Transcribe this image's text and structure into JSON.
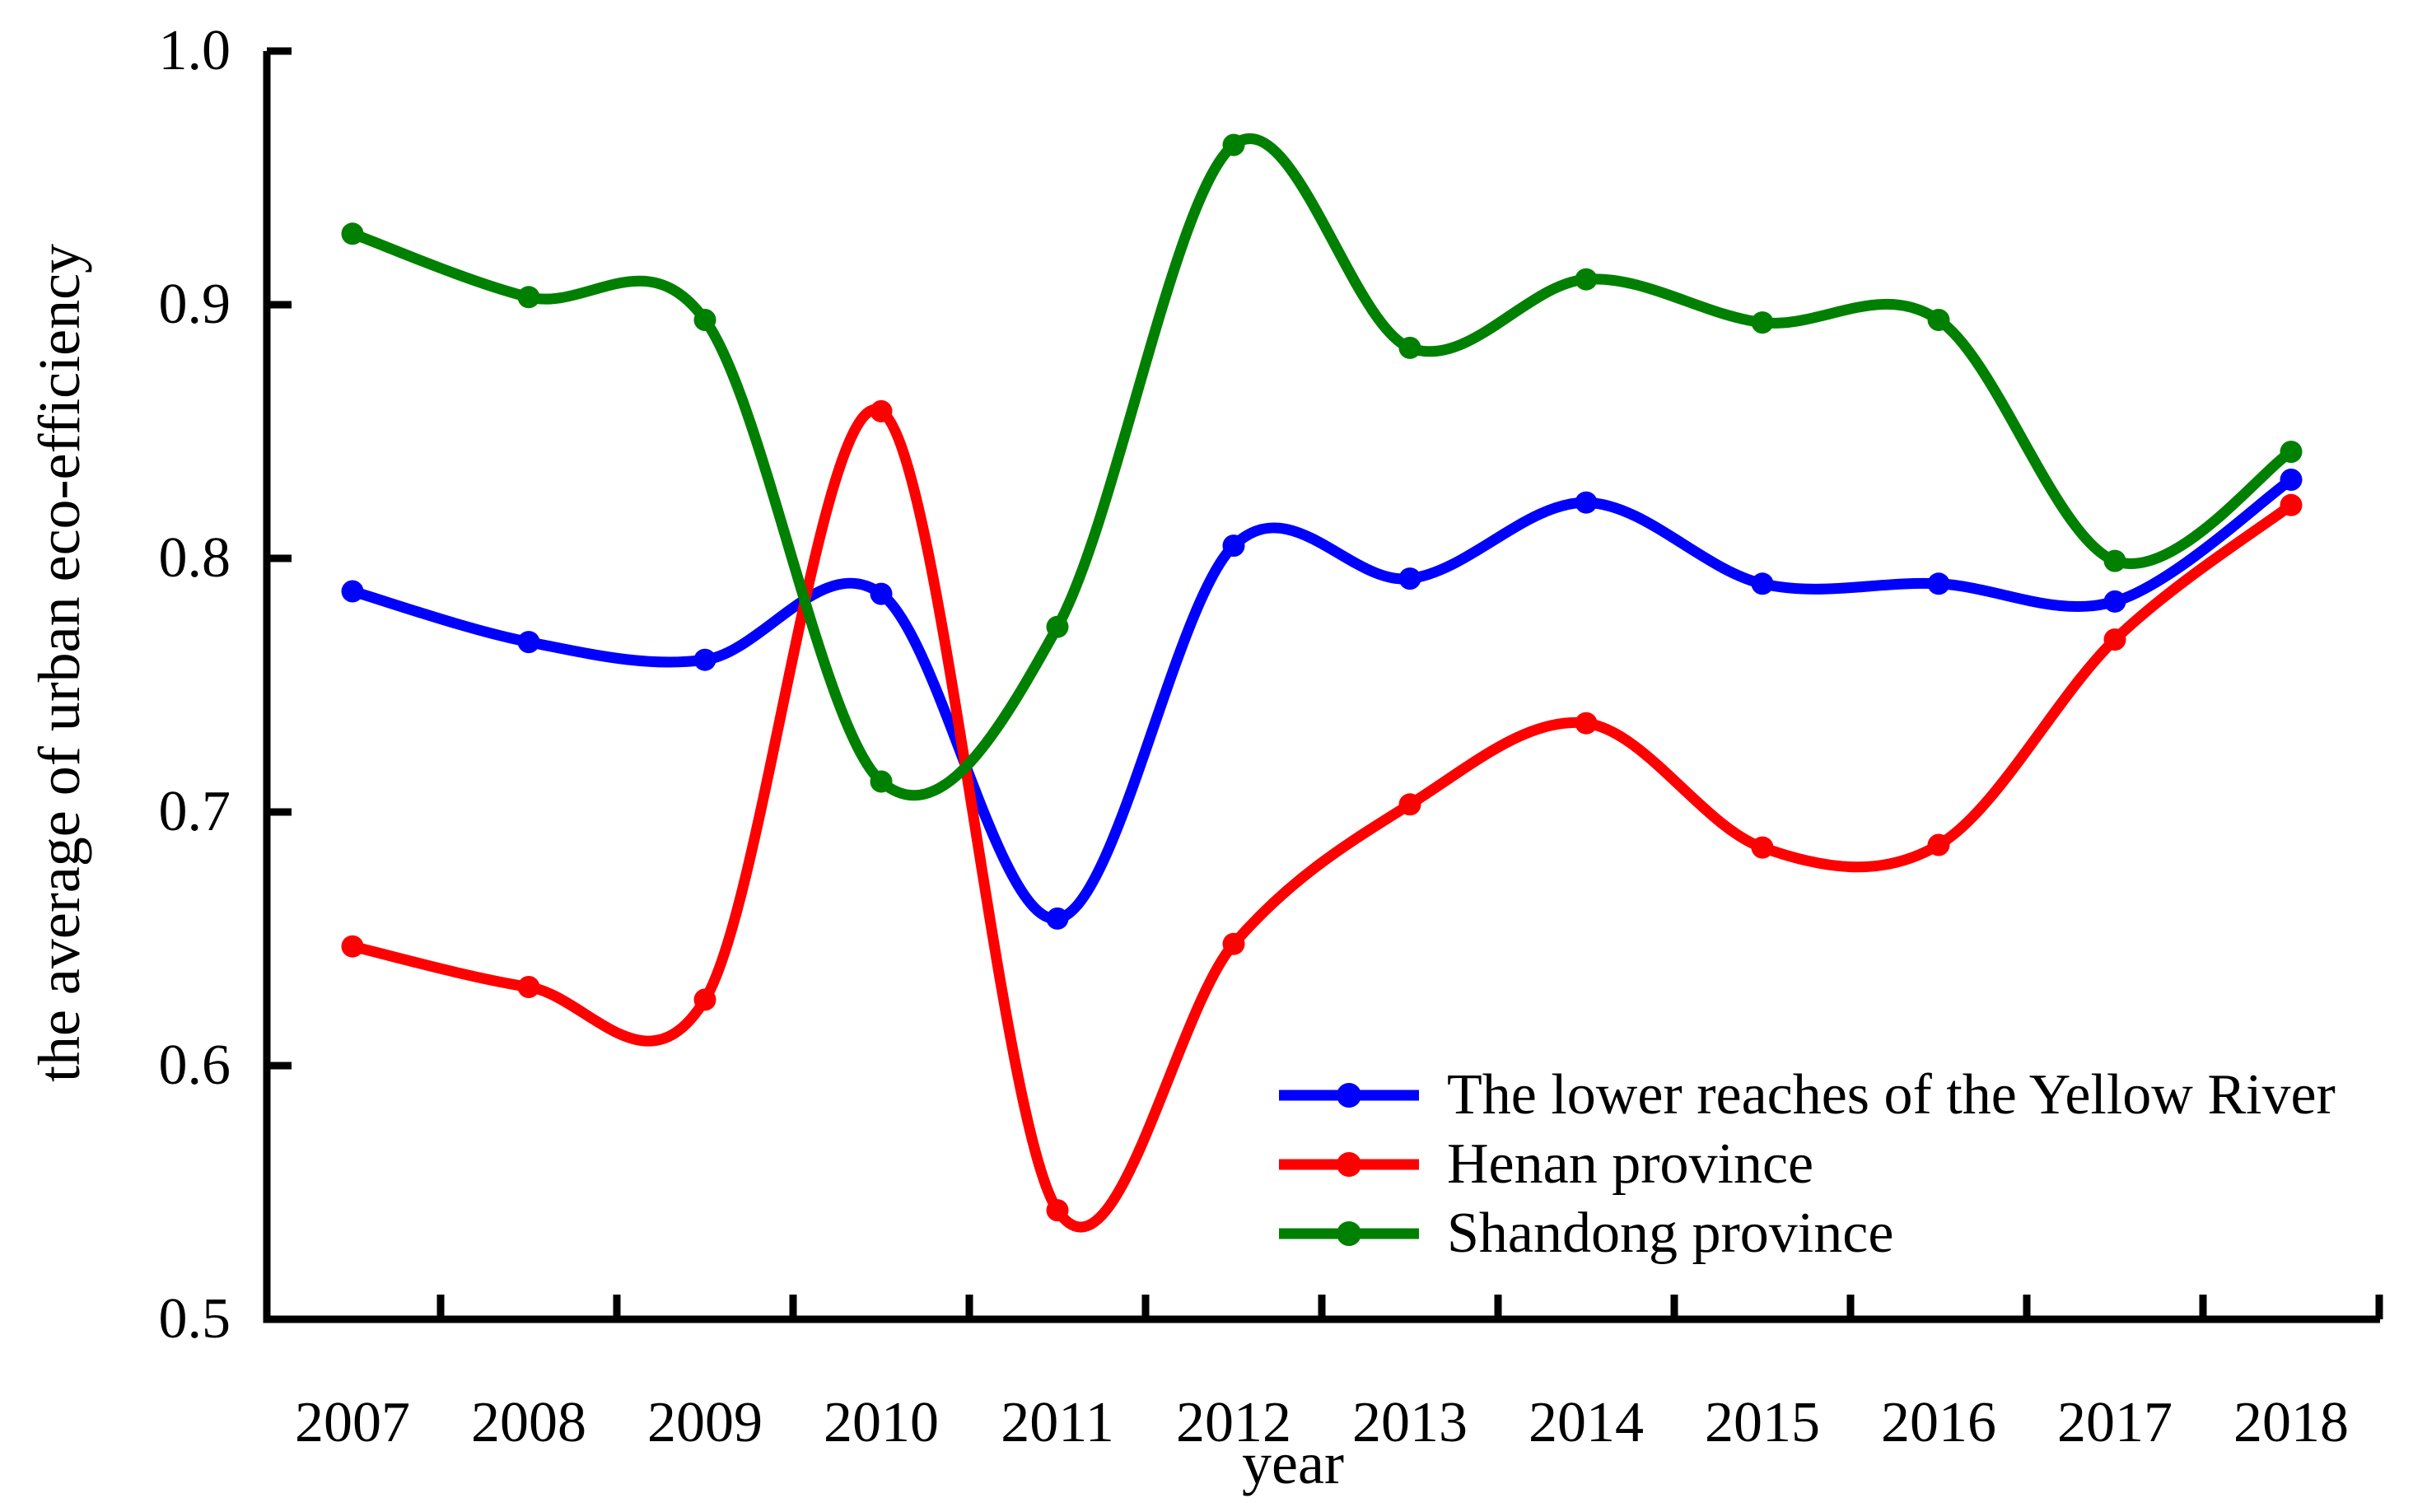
{
  "figure": {
    "background": "#ffffff",
    "text_color": "#000000"
  },
  "chart_data": {
    "type": "line",
    "title": "",
    "xlabel": "year",
    "ylabel": "the average of urban eco-efficiency",
    "x": [
      2007,
      2008,
      2009,
      2010,
      2011,
      2012,
      2013,
      2014,
      2015,
      2016,
      2017,
      2018
    ],
    "x_tick_labels": [
      "2007",
      "2008",
      "2009",
      "2010",
      "2011",
      "2012",
      "2013",
      "2014",
      "2015",
      "2016",
      "2017",
      "2018"
    ],
    "y_ticks": [
      "0.5",
      "0.6",
      "0.7",
      "0.8",
      "0.9",
      "1.0"
    ],
    "ylim": [
      0.5,
      1.0
    ],
    "grid": false,
    "legend_position": "inside lower right",
    "marker": "circle",
    "line_style": "smooth-spline",
    "series": [
      {
        "name": "The lower reaches of the Yellow River",
        "color": "#0000ff",
        "values": [
          0.787,
          0.767,
          0.76,
          0.786,
          0.658,
          0.805,
          0.792,
          0.822,
          0.79,
          0.79,
          0.783,
          0.831
        ]
      },
      {
        "name": "Henan province",
        "color": "#ff0000",
        "values": [
          0.647,
          0.631,
          0.626,
          0.858,
          0.543,
          0.648,
          0.703,
          0.735,
          0.686,
          0.687,
          0.768,
          0.821
        ]
      },
      {
        "name": "Shandong province",
        "color": "#008000",
        "values": [
          0.928,
          0.903,
          0.894,
          0.712,
          0.773,
          0.963,
          0.883,
          0.91,
          0.893,
          0.894,
          0.799,
          0.842
        ]
      }
    ]
  }
}
